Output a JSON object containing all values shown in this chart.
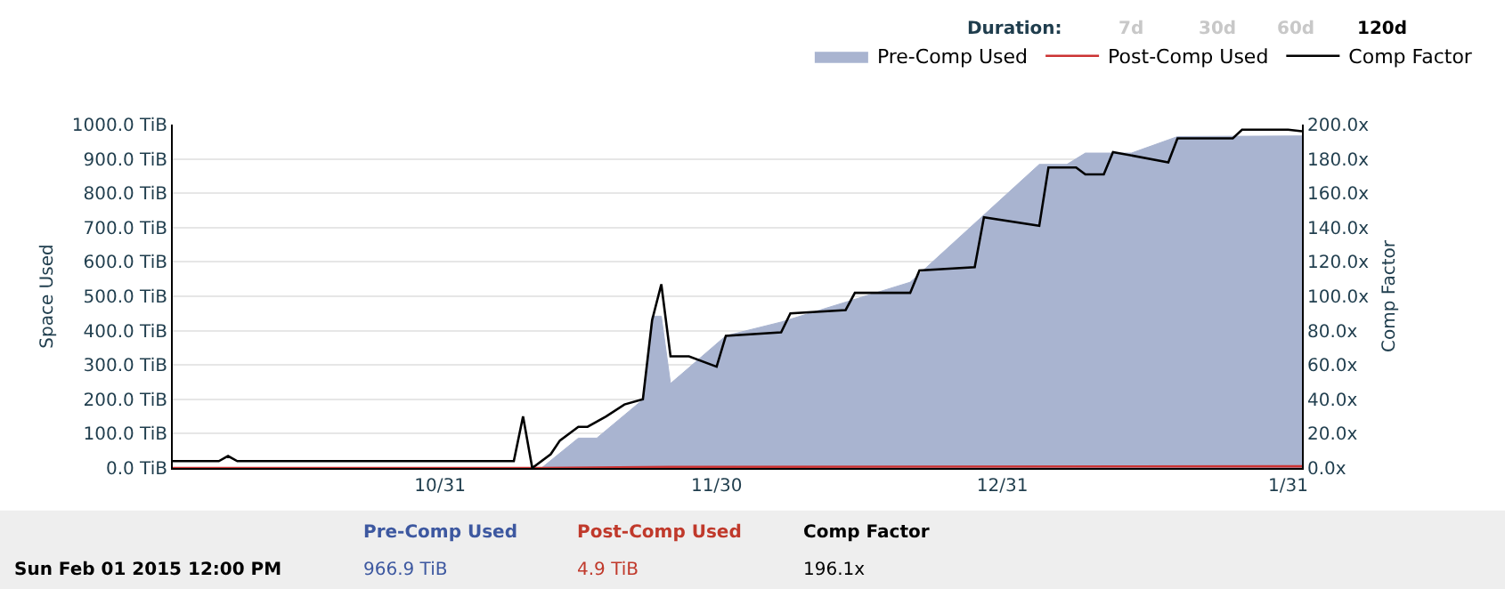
{
  "chart_data": {
    "type": "area",
    "ylabel": "Space Used",
    "y2label": "Comp Factor",
    "xlim": [
      "2014-10-02",
      "2015-02-01T12:00"
    ],
    "xticks": [
      {
        "value": "2014-10-31",
        "label": "10/31"
      },
      {
        "value": "2014-11-30",
        "label": "11/30"
      },
      {
        "value": "2014-12-31",
        "label": "12/31"
      },
      {
        "value": "2015-01-31",
        "label": "1/31"
      }
    ],
    "ylim": [
      0,
      1000
    ],
    "yticks": [
      {
        "value": 0,
        "label": "0.0 TiB"
      },
      {
        "value": 100,
        "label": "100.0 TiB"
      },
      {
        "value": 200,
        "label": "200.0 TiB"
      },
      {
        "value": 300,
        "label": "300.0 TiB"
      },
      {
        "value": 400,
        "label": "400.0 TiB"
      },
      {
        "value": 500,
        "label": "500.0 TiB"
      },
      {
        "value": 600,
        "label": "600.0 TiB"
      },
      {
        "value": 700,
        "label": "700.0 TiB"
      },
      {
        "value": 800,
        "label": "800.0 TiB"
      },
      {
        "value": 900,
        "label": "900.0 TiB"
      },
      {
        "value": 1000,
        "label": "1000.0 TiB"
      }
    ],
    "y2lim": [
      0,
      200
    ],
    "y2ticks": [
      {
        "value": 0,
        "label": "0.0x"
      },
      {
        "value": 20,
        "label": "20.0x"
      },
      {
        "value": 40,
        "label": "40.0x"
      },
      {
        "value": 60,
        "label": "60.0x"
      },
      {
        "value": 80,
        "label": "80.0x"
      },
      {
        "value": 100,
        "label": "100.0x"
      },
      {
        "value": 120,
        "label": "120.0x"
      },
      {
        "value": 140,
        "label": "140.0x"
      },
      {
        "value": 160,
        "label": "160.0x"
      },
      {
        "value": 180,
        "label": "180.0x"
      },
      {
        "value": 200,
        "label": "200.0x"
      }
    ],
    "grid": "y",
    "legend": "top right",
    "marker": "none",
    "series": [
      {
        "name": "Pre-Comp Used",
        "color": "#a9b4d0",
        "x": [
          "2014-10-02",
          "2014-11-11",
          "2014-11-15",
          "2014-11-17",
          "2014-11-22",
          "2014-11-23",
          "2014-11-24",
          "2014-11-25",
          "2014-12-01",
          "2014-12-07",
          "2014-12-21",
          "2015-01-04",
          "2015-01-07",
          "2015-01-09",
          "2015-01-14",
          "2015-01-19",
          "2015-02-01T12:00"
        ],
        "values": [
          0,
          0,
          87,
          87,
          199,
          442,
          442,
          246,
          385,
          425,
          541,
          884,
          884,
          917,
          917,
          965,
          966.9
        ]
      },
      {
        "name": "Post-Comp Used",
        "type": "line",
        "color": "#cc3333",
        "x": [
          "2014-10-02",
          "2014-11-11",
          "2014-11-25",
          "2015-02-01T12:00"
        ],
        "values": [
          0,
          0,
          3,
          4.9
        ]
      },
      {
        "name": "Comp Factor",
        "type": "line",
        "axis": "y2",
        "color": "#000000",
        "x": [
          "2014-10-02",
          "2014-10-07",
          "2014-10-08",
          "2014-10-09",
          "2014-11-08",
          "2014-11-09",
          "2014-11-10",
          "2014-11-12",
          "2014-11-13",
          "2014-11-15",
          "2014-11-16",
          "2014-11-18",
          "2014-11-20",
          "2014-11-22",
          "2014-11-23",
          "2014-11-24",
          "2014-11-25",
          "2014-11-27",
          "2014-11-30",
          "2014-12-01",
          "2014-12-07",
          "2014-12-08",
          "2014-12-14",
          "2014-12-15",
          "2014-12-21",
          "2014-12-22",
          "2014-12-28",
          "2014-12-29",
          "2015-01-04",
          "2015-01-05",
          "2015-01-08",
          "2015-01-09",
          "2015-01-11",
          "2015-01-12",
          "2015-01-18",
          "2015-01-19",
          "2015-01-25",
          "2015-01-26",
          "2015-01-31",
          "2015-02-01T12:00"
        ],
        "values": [
          4,
          4,
          7,
          4,
          4,
          30,
          0,
          8,
          16,
          24,
          24,
          30,
          37,
          40,
          86,
          107,
          65,
          65,
          59,
          77,
          79,
          90,
          92,
          102,
          102,
          115,
          117,
          146,
          141,
          175,
          175,
          171,
          171,
          184,
          178,
          192,
          192,
          197,
          197,
          196.1
        ]
      }
    ],
    "annotations": [
      "Duration:",
      "7d",
      "30d",
      "60d",
      "120d",
      "Sun Feb 01 2015 12:00 PM",
      "966.9 TiB",
      "4.9 TiB",
      "196.1x"
    ]
  }
}
